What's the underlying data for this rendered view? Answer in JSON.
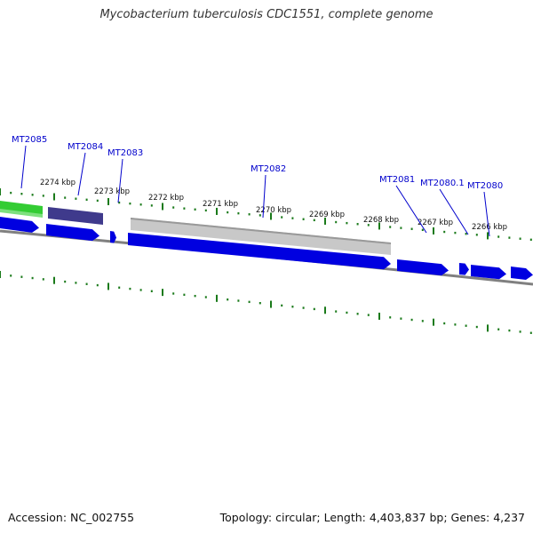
{
  "title": "Mycobacterium tuberculosis CDC1551, complete genome",
  "footer": {
    "accession": "Accession: NC_002755",
    "summary": "Topology: circular; Length: 4,403,837 bp; Genes: 4,237"
  },
  "colors": {
    "tick": "#1a7a1a",
    "cds": "#0000e0",
    "gene_label": "#0000cc",
    "backbone": "#808080",
    "feature_green": "#33cc33",
    "feature_purple": "#3f3a8c",
    "feature_gray": "#c8c8c8"
  },
  "scale_labels": [
    "2274 kbp",
    "2273 kbp",
    "2272 kbp",
    "2271 kbp",
    "2270 kbp",
    "2269 kbp",
    "2268 kbp",
    "2267 kbp",
    "2266 kbp"
  ],
  "genes": [
    "MT2085",
    "MT2084",
    "MT2083",
    "MT2082",
    "MT2081",
    "MT2080.1",
    "MT2080"
  ]
}
